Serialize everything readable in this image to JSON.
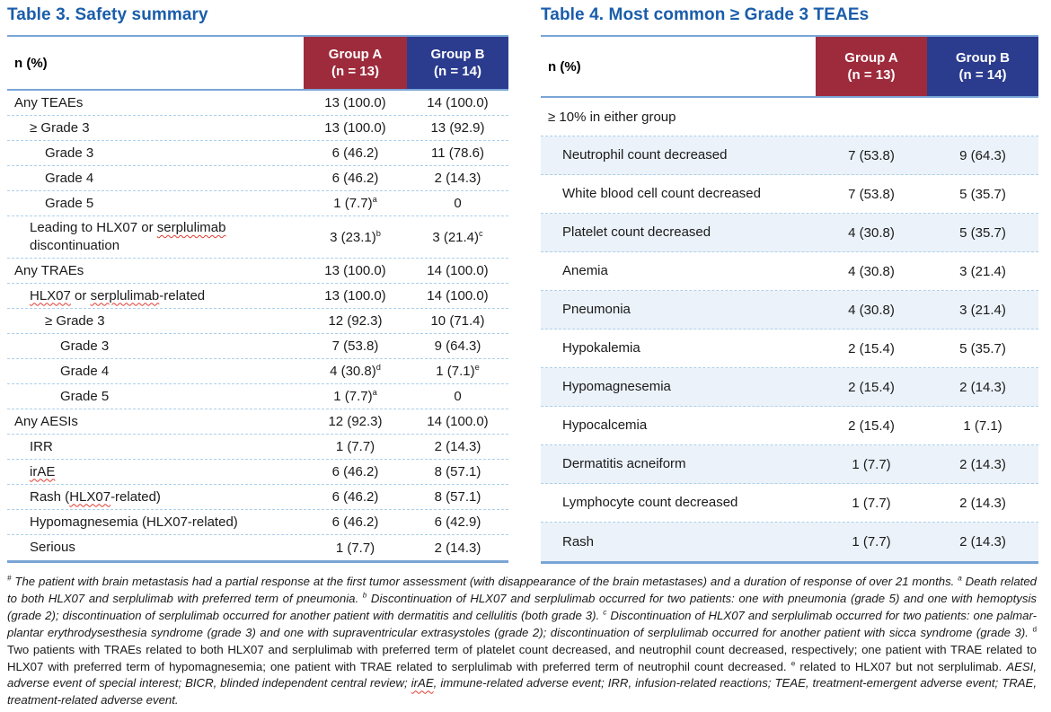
{
  "colors": {
    "title_blue": "#1a5dab",
    "group_a_red": "#9e2b3c",
    "group_b_navy": "#2b3c8f",
    "table_border_blue": "#79a5d6",
    "row_separator_blue": "#aed0ea",
    "shaded_row_blue": "#ebf2f9",
    "squiggle_red": "#e03c31"
  },
  "table3": {
    "title": "Table 3. Safety summary",
    "header": {
      "label": "n (%)",
      "group_a": [
        "Group A",
        "(n = 13)"
      ],
      "group_b": [
        "Group B",
        "(n = 14)"
      ]
    },
    "rows": [
      {
        "label": "Any TEAEs",
        "indent": 0,
        "a": "13 (100.0)",
        "b": "14 (100.0)"
      },
      {
        "label": "≥ Grade 3",
        "indent": 1,
        "a": "13 (100.0)",
        "b": "13 (92.9)"
      },
      {
        "label": "Grade 3",
        "indent": 2,
        "a": "6 (46.2)",
        "b": "11 (78.6)"
      },
      {
        "label": "Grade 4",
        "indent": 2,
        "a": "6 (46.2)",
        "b": "2 (14.3)"
      },
      {
        "label": "Grade 5",
        "indent": 2,
        "a": "1 (7.7)^a",
        "b": "0"
      },
      {
        "label": "Leading to HLX07 or serplulimab discontinuation",
        "indent": 1,
        "a": "3 (23.1)^b",
        "b": "3 (21.4)^c",
        "squiggle": [
          "serplulimab"
        ],
        "tall": true
      },
      {
        "label": "Any TRAEs",
        "indent": 0,
        "a": "13 (100.0)",
        "b": "14 (100.0)"
      },
      {
        "label": "HLX07 or serplulimab-related",
        "indent": 1,
        "a": "13 (100.0)",
        "b": "14 (100.0)",
        "squiggle": [
          "HLX07",
          "serplulimab"
        ]
      },
      {
        "label": "≥ Grade 3",
        "indent": 2,
        "a": "12 (92.3)",
        "b": "10 (71.4)"
      },
      {
        "label": "Grade 3",
        "indent": 3,
        "a": "7 (53.8)",
        "b": "9 (64.3)"
      },
      {
        "label": "Grade 4",
        "indent": 3,
        "a": "4 (30.8)^d",
        "b": "1 (7.1)^e"
      },
      {
        "label": "Grade 5",
        "indent": 3,
        "a": "1 (7.7)^a",
        "b": "0"
      },
      {
        "label": "Any AESIs",
        "indent": 0,
        "a": "12 (92.3)",
        "b": "14 (100.0)"
      },
      {
        "label": "IRR",
        "indent": 1,
        "a": "1 (7.7)",
        "b": "2 (14.3)"
      },
      {
        "label": "irAE",
        "indent": 1,
        "a": "6 (46.2)",
        "b": "8 (57.1)",
        "squiggle": [
          "irAE"
        ]
      },
      {
        "label": "Rash (HLX07-related)",
        "indent": 1,
        "a": "6 (46.2)",
        "b": "8 (57.1)",
        "squiggle": [
          "HLX07"
        ]
      },
      {
        "label": "Hypomagnesemia (HLX07-related)",
        "indent": 1,
        "a": "6 (46.2)",
        "b": "6 (42.9)"
      },
      {
        "label": "Serious",
        "indent": 1,
        "a": "1 (7.7)",
        "b": "2 (14.3)"
      }
    ]
  },
  "table4": {
    "title": "Table 4. Most common ≥ Grade 3 TEAEs",
    "header": {
      "label": "n (%)",
      "group_a": [
        "Group A",
        "(n = 13)"
      ],
      "group_b": [
        "Group B",
        "(n = 14)"
      ]
    },
    "span_row": "≥ 10% in either group",
    "rows": [
      {
        "label": "Neutrophil count decreased",
        "a": "7 (53.8)",
        "b": "9 (64.3)",
        "shaded": true
      },
      {
        "label": "White blood cell count decreased",
        "a": "7 (53.8)",
        "b": "5 (35.7)",
        "shaded": false
      },
      {
        "label": "Platelet count decreased",
        "a": "4 (30.8)",
        "b": "5 (35.7)",
        "shaded": true
      },
      {
        "label": "Anemia",
        "a": "4 (30.8)",
        "b": "3 (21.4)",
        "shaded": false
      },
      {
        "label": "Pneumonia",
        "a": "4 (30.8)",
        "b": "3 (21.4)",
        "shaded": true
      },
      {
        "label": "Hypokalemia",
        "a": "2 (15.4)",
        "b": "5 (35.7)",
        "shaded": false
      },
      {
        "label": "Hypomagnesemia",
        "a": "2 (15.4)",
        "b": "2 (14.3)",
        "shaded": true
      },
      {
        "label": "Hypocalcemia",
        "a": "2 (15.4)",
        "b": "1 (7.1)",
        "shaded": false
      },
      {
        "label": "Dermatitis acneiform",
        "a": "1 (7.7)",
        "b": "2 (14.3)",
        "shaded": true
      },
      {
        "label": "Lymphocyte count decreased",
        "a": "1 (7.7)",
        "b": "2 (14.3)",
        "shaded": false
      },
      {
        "label": "Rash",
        "a": "1 (7.7)",
        "b": "2 (14.3)",
        "shaded": true
      }
    ]
  },
  "footnote": {
    "segments": [
      {
        "sup": "#",
        "italic": true,
        "text": "The patient with brain metastasis had a partial response at the first tumor assessment (with disappearance of the brain metastases) and a duration of response of over 21 months. "
      },
      {
        "sup": "a",
        "italic": true,
        "text": "Death related to both HLX07 and serplulimab with preferred term of pneumonia. "
      },
      {
        "sup": "b",
        "italic": true,
        "text": "Discontinuation of HLX07 and serplulimab occurred for two patients: one with pneumonia (grade 5) and one with hemoptysis (grade 2); discontinuation of serplulimab occurred for another patient with dermatitis and cellulitis (both grade 3). "
      },
      {
        "sup": "c",
        "italic": true,
        "text": "Discontinuation of HLX07 and serplulimab occurred for two patients: one palmar-plantar erythrodysesthesia syndrome (grade 3) and one with supraventricular extrasystoles (grade 2); discontinuation of serplulimab occurred for another patient with sicca syndrome (grade 3). "
      },
      {
        "sup": "d",
        "italic": false,
        "text": "Two patients with TRAEs related to both HLX07 and serplulimab with preferred term of platelet count decreased, and neutrophil count decreased, respectively; one patient with TRAE related to HLX07 with preferred term of hypomagnesemia; one patient with TRAE related to serplulimab with preferred term of neutrophil count decreased. "
      },
      {
        "sup": "e",
        "italic": false,
        "text": "related to HLX07 but not serplulimab. "
      },
      {
        "sup": "",
        "italic": true,
        "text": "AESI, adverse event of special interest; BICR, blinded independent central review; irAE, immune-related adverse event; IRR, infusion-related reactions; TEAE, treatment-emergent adverse event; TRAE, treatment-related adverse event.",
        "squiggle": [
          "irAE"
        ]
      }
    ]
  }
}
